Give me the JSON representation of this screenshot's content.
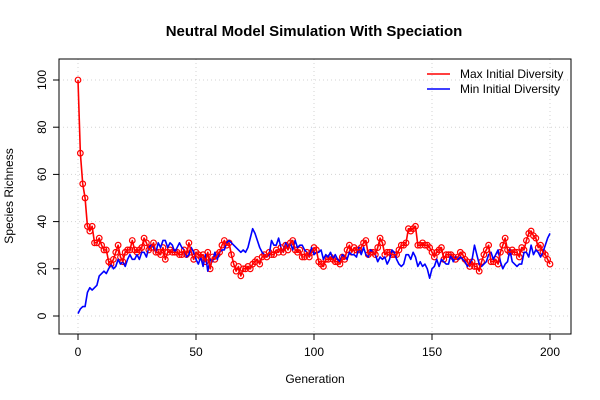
{
  "chart_data": {
    "type": "line",
    "title": "Neutral Model Simulation With Speciation",
    "xlabel": "Generation",
    "ylabel": "Species Richness",
    "xlim": [
      0,
      200
    ],
    "ylim": [
      0,
      105
    ],
    "xticks": [
      0,
      50,
      100,
      150,
      200
    ],
    "yticks": [
      0,
      20,
      40,
      60,
      80,
      100
    ],
    "grid": true,
    "legend_position": "top-right",
    "series": [
      {
        "name": "Max Initial Diversity",
        "color": "#ff0000",
        "markers": "open-circle",
        "x": [
          0,
          1,
          2,
          3,
          4,
          5,
          6,
          7,
          8,
          9,
          10,
          11,
          12,
          13,
          14,
          15,
          16,
          17,
          18,
          19,
          20,
          21,
          22,
          23,
          24,
          25,
          26,
          27,
          28,
          29,
          30,
          31,
          32,
          33,
          34,
          35,
          36,
          37,
          38,
          39,
          40,
          41,
          42,
          43,
          44,
          45,
          46,
          47,
          48,
          49,
          50,
          51,
          52,
          53,
          54,
          55,
          56,
          57,
          58,
          59,
          60,
          61,
          62,
          63,
          64,
          65,
          66,
          67,
          68,
          69,
          70,
          71,
          72,
          73,
          74,
          75,
          76,
          77,
          78,
          79,
          80,
          81,
          82,
          83,
          84,
          85,
          86,
          87,
          88,
          89,
          90,
          91,
          92,
          93,
          94,
          95,
          96,
          97,
          98,
          99,
          100,
          101,
          102,
          103,
          104,
          105,
          106,
          107,
          108,
          109,
          110,
          111,
          112,
          113,
          114,
          115,
          116,
          117,
          118,
          119,
          120,
          121,
          122,
          123,
          124,
          125,
          126,
          127,
          128,
          129,
          130,
          131,
          132,
          133,
          134,
          135,
          136,
          137,
          138,
          139,
          140,
          141,
          142,
          143,
          144,
          145,
          146,
          147,
          148,
          149,
          150,
          151,
          152,
          153,
          154,
          155,
          156,
          157,
          158,
          159,
          160,
          161,
          162,
          163,
          164,
          165,
          166,
          167,
          168,
          169,
          170,
          171,
          172,
          173,
          174,
          175,
          176,
          177,
          178,
          179,
          180,
          181,
          182,
          183,
          184,
          185,
          186,
          187,
          188,
          189,
          190,
          191,
          192,
          193,
          194,
          195,
          196,
          197,
          198,
          199,
          200
        ],
        "y": [
          100,
          69,
          56,
          50,
          38,
          36,
          38,
          31,
          31,
          33,
          30,
          28,
          28,
          23,
          22,
          24,
          27,
          30,
          25,
          23,
          27,
          28,
          28,
          32,
          28,
          27,
          28,
          29,
          33,
          31,
          28,
          29,
          31,
          27,
          27,
          26,
          29,
          24,
          27,
          28,
          27,
          27,
          27,
          26,
          26,
          28,
          26,
          31,
          27,
          24,
          27,
          26,
          25,
          26,
          23,
          27,
          20,
          25,
          24,
          26,
          27,
          30,
          32,
          30,
          31,
          26,
          22,
          19,
          21,
          17,
          20,
          20,
          21,
          20,
          22,
          23,
          24,
          22,
          25,
          26,
          25,
          27,
          26,
          26,
          28,
          27,
          29,
          27,
          30,
          28,
          31,
          32,
          28,
          27,
          28,
          25,
          25,
          27,
          25,
          27,
          29,
          28,
          23,
          22,
          21,
          24,
          24,
          25,
          24,
          23,
          23,
          22,
          25,
          24,
          28,
          30,
          27,
          29,
          28,
          28,
          29,
          31,
          32,
          26,
          27,
          27,
          26,
          29,
          33,
          31,
          26,
          27,
          27,
          26,
          26,
          26,
          28,
          30,
          30,
          31,
          37,
          36,
          37,
          38,
          30,
          30,
          31,
          30,
          30,
          29,
          27,
          25,
          27,
          28,
          29,
          24,
          26,
          26,
          26,
          25,
          24,
          25,
          27,
          26,
          24,
          23,
          21,
          23,
          21,
          21,
          19,
          23,
          26,
          28,
          30,
          23,
          23,
          24,
          22,
          27,
          30,
          33,
          28,
          27,
          28,
          27,
          27,
          25,
          29,
          28,
          32,
          35,
          36,
          34,
          33,
          29,
          30,
          27,
          26,
          24,
          22
        ]
      },
      {
        "name": "Min Initial Diversity",
        "color": "#0000ff",
        "markers": "none",
        "x": [
          0,
          1,
          2,
          3,
          4,
          5,
          6,
          7,
          8,
          9,
          10,
          11,
          12,
          13,
          14,
          15,
          16,
          17,
          18,
          19,
          20,
          21,
          22,
          23,
          24,
          25,
          26,
          27,
          28,
          29,
          30,
          31,
          32,
          33,
          34,
          35,
          36,
          37,
          38,
          39,
          40,
          41,
          42,
          43,
          44,
          45,
          46,
          47,
          48,
          49,
          50,
          51,
          52,
          53,
          54,
          55,
          56,
          57,
          58,
          59,
          60,
          61,
          62,
          63,
          64,
          65,
          66,
          67,
          68,
          69,
          70,
          71,
          72,
          73,
          74,
          75,
          76,
          77,
          78,
          79,
          80,
          81,
          82,
          83,
          84,
          85,
          86,
          87,
          88,
          89,
          90,
          91,
          92,
          93,
          94,
          95,
          96,
          97,
          98,
          99,
          100,
          101,
          102,
          103,
          104,
          105,
          106,
          107,
          108,
          109,
          110,
          111,
          112,
          113,
          114,
          115,
          116,
          117,
          118,
          119,
          120,
          121,
          122,
          123,
          124,
          125,
          126,
          127,
          128,
          129,
          130,
          131,
          132,
          133,
          134,
          135,
          136,
          137,
          138,
          139,
          140,
          141,
          142,
          143,
          144,
          145,
          146,
          147,
          148,
          149,
          150,
          151,
          152,
          153,
          154,
          155,
          156,
          157,
          158,
          159,
          160,
          161,
          162,
          163,
          164,
          165,
          166,
          167,
          168,
          169,
          170,
          171,
          172,
          173,
          174,
          175,
          176,
          177,
          178,
          179,
          180,
          181,
          182,
          183,
          184,
          185,
          186,
          187,
          188,
          189,
          190,
          191,
          192,
          193,
          194,
          195,
          196,
          197,
          198,
          199,
          200
        ],
        "y": [
          1,
          3,
          4,
          4,
          10,
          12,
          11,
          12,
          13,
          17,
          18,
          19,
          18,
          20,
          22,
          20,
          21,
          24,
          22,
          23,
          21,
          24,
          26,
          24,
          24,
          26,
          24,
          27,
          27,
          25,
          29,
          30,
          29,
          27,
          31,
          29,
          32,
          32,
          29,
          31,
          30,
          27,
          29,
          31,
          29,
          28,
          25,
          26,
          29,
          27,
          24,
          22,
          25,
          21,
          26,
          19,
          24,
          23,
          27,
          24,
          27,
          28,
          28,
          31,
          32,
          31,
          30,
          29,
          28,
          27,
          28,
          27,
          29,
          33,
          37,
          35,
          32,
          29,
          27,
          26,
          25,
          26,
          32,
          30,
          30,
          33,
          29,
          27,
          31,
          29,
          31,
          28,
          32,
          29,
          30,
          30,
          28,
          27,
          25,
          29,
          26,
          27,
          27,
          28,
          24,
          26,
          25,
          27,
          24,
          26,
          24,
          23,
          26,
          25,
          24,
          27,
          26,
          26,
          25,
          29,
          26,
          29,
          26,
          25,
          28,
          27,
          26,
          23,
          25,
          24,
          25,
          22,
          24,
          28,
          27,
          24,
          22,
          21,
          22,
          26,
          26,
          24,
          27,
          25,
          21,
          23,
          21,
          22,
          20,
          16,
          20,
          21,
          24,
          21,
          24,
          23,
          22,
          22,
          26,
          23,
          25,
          24,
          25,
          24,
          23,
          21,
          22,
          24,
          30,
          26,
          22,
          21,
          22,
          23,
          26,
          27,
          24,
          26,
          28,
          23,
          20,
          22,
          23,
          28,
          23,
          22,
          21,
          22,
          22,
          27,
          27,
          25,
          30,
          26,
          28,
          27,
          25,
          27,
          30,
          33,
          35
        ]
      }
    ]
  }
}
